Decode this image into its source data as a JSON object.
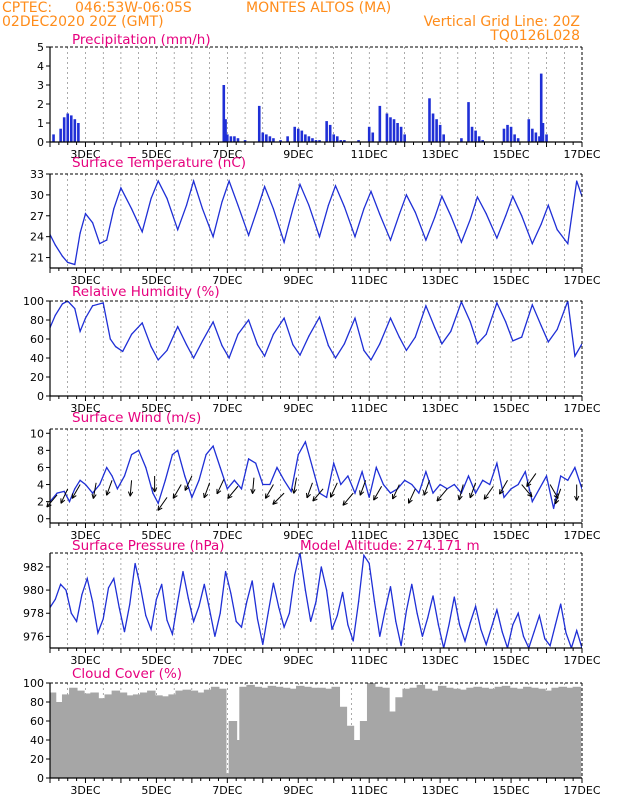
{
  "header": {
    "source": "CPTEC:",
    "coords": "046:53W-06:05S",
    "location": "MONTES ALTOS (MA)",
    "run": "02DEC2020 20Z (GMT)",
    "grid_note": "Vertical Grid Line: 20Z",
    "model": "TQ0126L028"
  },
  "colors": {
    "header": "#ff8c1a",
    "title": "#e6007e",
    "series": "#1f2fd6",
    "bars": "#1f2fd6",
    "cloud": "#a6a6a6",
    "grid": "#555555"
  },
  "chart_data": [
    {
      "type": "bar",
      "title": "Precipitation (mm/h)",
      "ylim": [
        0,
        5
      ],
      "yticks": [
        0,
        1,
        2,
        3,
        4,
        5
      ],
      "x_ticks": [
        "3DEC",
        "5DEC",
        "7DEC",
        "9DEC",
        "11DEC",
        "13DEC",
        "15DEC",
        "17DEC"
      ],
      "x_range_days": [
        2.0,
        17.0
      ],
      "x": [
        2.1,
        2.3,
        2.4,
        2.5,
        2.6,
        2.7,
        2.8,
        6.9,
        6.95,
        7.0,
        7.1,
        7.2,
        7.3,
        7.5,
        7.9,
        8.0,
        8.1,
        8.2,
        8.3,
        8.5,
        8.7,
        8.9,
        9.0,
        9.1,
        9.2,
        9.3,
        9.4,
        9.5,
        9.6,
        9.8,
        9.9,
        10.0,
        10.1,
        10.2,
        10.3,
        10.7,
        11.0,
        11.1,
        11.3,
        11.5,
        11.6,
        11.7,
        11.8,
        11.9,
        12.0,
        12.7,
        12.8,
        12.9,
        13.0,
        13.1,
        13.6,
        13.8,
        13.9,
        14.0,
        14.1,
        14.2,
        14.8,
        14.9,
        15.0,
        15.1,
        15.2,
        15.5,
        15.6,
        15.7,
        15.8,
        15.85,
        15.9,
        16.0
      ],
      "values": [
        0.4,
        0.7,
        1.3,
        1.5,
        1.4,
        1.2,
        1.0,
        3.0,
        1.2,
        0.4,
        0.3,
        0.3,
        0.2,
        0.1,
        1.9,
        0.5,
        0.4,
        0.3,
        0.2,
        0.1,
        0.3,
        0.8,
        0.7,
        0.6,
        0.4,
        0.3,
        0.2,
        0.1,
        0.1,
        1.1,
        0.9,
        0.4,
        0.3,
        0.1,
        0.1,
        0.1,
        0.8,
        0.5,
        1.9,
        1.5,
        1.3,
        1.2,
        1.0,
        0.8,
        0.4,
        2.3,
        1.5,
        1.2,
        0.9,
        0.4,
        0.2,
        2.1,
        0.8,
        0.6,
        0.3,
        0.1,
        0.7,
        0.9,
        0.8,
        0.4,
        0.2,
        1.2,
        0.7,
        0.5,
        0.3,
        3.6,
        1.0,
        0.4
      ]
    },
    {
      "type": "line",
      "title": "Surface Temperature (nC)",
      "ylim": [
        19.5,
        33
      ],
      "yticks": [
        21,
        24,
        27,
        30,
        33
      ],
      "x_ticks": [
        "3DEC",
        "5DEC",
        "7DEC",
        "9DEC",
        "11DEC",
        "13DEC",
        "15DEC",
        "17DEC"
      ],
      "x_range_days": [
        2.0,
        17.0
      ],
      "x": [
        2.0,
        2.15,
        2.35,
        2.5,
        2.7,
        2.85,
        3.0,
        3.2,
        3.4,
        3.6,
        3.8,
        4.0,
        4.3,
        4.6,
        4.85,
        5.05,
        5.3,
        5.6,
        5.85,
        6.05,
        6.3,
        6.6,
        6.85,
        7.05,
        7.3,
        7.6,
        7.85,
        8.05,
        8.3,
        8.6,
        8.85,
        9.05,
        9.3,
        9.6,
        9.85,
        10.05,
        10.3,
        10.6,
        10.85,
        11.05,
        11.3,
        11.6,
        11.85,
        12.05,
        12.3,
        12.6,
        12.85,
        13.05,
        13.3,
        13.6,
        13.85,
        14.05,
        14.3,
        14.6,
        14.85,
        15.05,
        15.3,
        15.6,
        15.85,
        16.05,
        16.3,
        16.6,
        16.85,
        17.0
      ],
      "values": [
        24.3,
        22.8,
        21.2,
        20.3,
        20.0,
        24.5,
        27.3,
        26.0,
        23.0,
        23.5,
        28.0,
        31.0,
        28.0,
        24.7,
        29.5,
        32.0,
        29.5,
        25.0,
        28.5,
        32.0,
        28.0,
        24.0,
        29.0,
        32.0,
        28.5,
        24.2,
        28.0,
        31.2,
        28.0,
        23.2,
        28.0,
        31.5,
        28.5,
        24.0,
        28.5,
        31.3,
        28.3,
        24.0,
        28.0,
        30.5,
        27.2,
        23.5,
        27.2,
        30.0,
        27.5,
        23.5,
        26.8,
        29.8,
        27.0,
        23.2,
        26.5,
        29.7,
        27.3,
        23.8,
        27.0,
        29.8,
        27.0,
        23.0,
        25.8,
        28.5,
        25.0,
        23.0,
        32.0,
        29.8
      ]
    },
    {
      "type": "line",
      "title": "Relative Humidity (%)",
      "ylim": [
        0,
        100
      ],
      "yticks": [
        0,
        20,
        40,
        60,
        80,
        100
      ],
      "x_ticks": [
        "3DEC",
        "5DEC",
        "7DEC",
        "9DEC",
        "11DEC",
        "13DEC",
        "15DEC",
        "17DEC"
      ],
      "x_range_days": [
        2.0,
        17.0
      ],
      "x": [
        2.0,
        2.15,
        2.35,
        2.5,
        2.7,
        2.85,
        3.0,
        3.2,
        3.5,
        3.7,
        3.85,
        4.05,
        4.3,
        4.6,
        4.85,
        5.05,
        5.3,
        5.6,
        5.85,
        6.05,
        6.3,
        6.6,
        6.85,
        7.05,
        7.3,
        7.6,
        7.85,
        8.05,
        8.3,
        8.6,
        8.85,
        9.05,
        9.3,
        9.6,
        9.85,
        10.05,
        10.3,
        10.6,
        10.85,
        11.05,
        11.3,
        11.6,
        11.85,
        12.05,
        12.3,
        12.6,
        12.85,
        13.05,
        13.3,
        13.6,
        13.85,
        14.05,
        14.3,
        14.6,
        14.85,
        15.05,
        15.3,
        15.6,
        15.85,
        16.05,
        16.3,
        16.6,
        16.8,
        17.0
      ],
      "values": [
        72,
        85,
        97,
        100,
        92,
        68,
        82,
        95,
        98,
        60,
        52,
        47,
        65,
        77,
        52,
        38,
        48,
        73,
        54,
        40,
        58,
        78,
        53,
        40,
        65,
        80,
        54,
        42,
        65,
        82,
        54,
        43,
        63,
        83,
        53,
        40,
        55,
        82,
        48,
        38,
        55,
        82,
        62,
        48,
        62,
        95,
        72,
        55,
        68,
        99,
        78,
        55,
        65,
        98,
        78,
        58,
        62,
        96,
        74,
        57,
        70,
        100,
        42,
        55
      ]
    },
    {
      "type": "line",
      "title": "Surface Wind (m/s)",
      "ylim": [
        -0.5,
        10.5
      ],
      "yticks": [
        0,
        2,
        4,
        6,
        8,
        10
      ],
      "x_ticks": [
        "3DEC",
        "5DEC",
        "7DEC",
        "9DEC",
        "11DEC",
        "13DEC",
        "15DEC",
        "17DEC"
      ],
      "x_range_days": [
        2.0,
        17.0
      ],
      "x": [
        2.0,
        2.2,
        2.4,
        2.55,
        2.7,
        2.85,
        3.0,
        3.2,
        3.4,
        3.6,
        3.75,
        3.9,
        4.1,
        4.3,
        4.5,
        4.7,
        4.9,
        5.05,
        5.25,
        5.45,
        5.6,
        5.8,
        6.0,
        6.2,
        6.4,
        6.6,
        6.8,
        7.0,
        7.2,
        7.4,
        7.6,
        7.8,
        8.0,
        8.2,
        8.4,
        8.6,
        8.8,
        9.0,
        9.2,
        9.4,
        9.6,
        9.8,
        10.0,
        10.2,
        10.4,
        10.6,
        10.8,
        11.0,
        11.2,
        11.4,
        11.6,
        11.8,
        12.0,
        12.2,
        12.4,
        12.6,
        12.8,
        13.0,
        13.2,
        13.4,
        13.6,
        13.8,
        14.0,
        14.2,
        14.4,
        14.6,
        14.8,
        15.0,
        15.2,
        15.4,
        15.6,
        15.8,
        16.0,
        16.2,
        16.4,
        16.6,
        16.8,
        17.0
      ],
      "values": [
        2.0,
        3.0,
        3.2,
        2.0,
        3.5,
        4.5,
        4.0,
        3.0,
        4.0,
        6.0,
        5.0,
        3.5,
        5.0,
        7.5,
        8.0,
        6.0,
        3.0,
        1.8,
        4.5,
        7.5,
        8.0,
        5.0,
        2.5,
        4.5,
        7.5,
        8.5,
        6.0,
        3.5,
        4.5,
        3.5,
        7.0,
        6.5,
        4.0,
        4.0,
        6.0,
        4.5,
        3.2,
        7.5,
        9.0,
        6.0,
        3.0,
        2.5,
        6.5,
        4.0,
        5.0,
        3.0,
        5.5,
        2.5,
        6.0,
        4.0,
        3.0,
        3.5,
        4.5,
        4.0,
        3.0,
        5.5,
        3.0,
        4.0,
        3.5,
        4.0,
        3.0,
        5.0,
        3.0,
        4.5,
        4.0,
        6.5,
        2.5,
        3.5,
        4.0,
        5.5,
        2.0,
        3.5,
        5.0,
        1.2,
        5.0,
        4.5,
        6.0,
        3.5
      ],
      "arrows_x": [
        2.2,
        2.5,
        2.85,
        3.3,
        3.75,
        4.3,
        4.95,
        5.3,
        5.7,
        6.0,
        6.5,
        6.9,
        7.3,
        7.75,
        8.3,
        8.6,
        8.95,
        9.4,
        9.7,
        10.1,
        10.55,
        10.9,
        11.35,
        11.85,
        12.3,
        12.7,
        13.2,
        13.65,
        14.0,
        14.5,
        14.9,
        15.3,
        15.7,
        16.1,
        16.4,
        16.85
      ],
      "arrows_y": [
        2.8,
        3.5,
        4.0,
        4.2,
        4.5,
        4.5,
        5.0,
        2.5,
        4.0,
        5.0,
        4.2,
        4.6,
        3.8,
        4.8,
        4.0,
        3.0,
        4.8,
        4.2,
        3.5,
        4.2,
        3.0,
        4.5,
        3.8,
        4.0,
        3.5,
        4.5,
        3.5,
        4.0,
        4.2,
        3.8,
        4.5,
        4.0,
        5.3,
        4.0,
        3.5,
        4.0
      ],
      "arrows_dir": [
        230,
        245,
        240,
        260,
        250,
        265,
        270,
        235,
        240,
        245,
        250,
        245,
        230,
        265,
        240,
        225,
        260,
        250,
        230,
        245,
        230,
        250,
        240,
        245,
        245,
        250,
        230,
        255,
        250,
        235,
        240,
        310,
        235,
        300,
        250,
        270
      ]
    },
    {
      "type": "line",
      "title": "Surface Pressure (hPa)",
      "subtitle": "Model Altitude: 274.171 m",
      "ylim": [
        975,
        983.2
      ],
      "yticks": [
        976,
        978,
        980,
        982
      ],
      "x_ticks": [
        "3DEC",
        "5DEC",
        "7DEC",
        "9DEC",
        "11DEC",
        "13DEC",
        "15DEC",
        "17DEC"
      ],
      "x_range_days": [
        2.0,
        17.0
      ],
      "x": [
        2.0,
        2.15,
        2.3,
        2.45,
        2.6,
        2.75,
        2.9,
        3.05,
        3.2,
        3.35,
        3.5,
        3.65,
        3.8,
        3.95,
        4.1,
        4.25,
        4.4,
        4.55,
        4.7,
        4.85,
        5.0,
        5.15,
        5.3,
        5.45,
        5.6,
        5.75,
        5.9,
        6.05,
        6.2,
        6.35,
        6.5,
        6.65,
        6.8,
        6.95,
        7.1,
        7.25,
        7.4,
        7.55,
        7.7,
        7.85,
        8.0,
        8.15,
        8.3,
        8.45,
        8.6,
        8.75,
        8.9,
        9.05,
        9.2,
        9.35,
        9.5,
        9.65,
        9.8,
        9.95,
        10.1,
        10.25,
        10.4,
        10.55,
        10.7,
        10.85,
        11.0,
        11.15,
        11.3,
        11.45,
        11.6,
        11.75,
        11.9,
        12.05,
        12.2,
        12.35,
        12.5,
        12.65,
        12.8,
        12.95,
        13.1,
        13.25,
        13.4,
        13.55,
        13.7,
        13.85,
        14.0,
        14.15,
        14.3,
        14.45,
        14.6,
        14.75,
        14.9,
        15.05,
        15.2,
        15.35,
        15.5,
        15.65,
        15.8,
        15.95,
        16.1,
        16.25,
        16.4,
        16.55,
        16.7,
        16.85,
        17.0
      ],
      "values": [
        978.5,
        979.2,
        980.5,
        980.0,
        978.0,
        977.3,
        979.6,
        981.0,
        979.0,
        976.3,
        977.5,
        980.2,
        981.0,
        978.5,
        976.4,
        978.8,
        982.3,
        980.3,
        977.8,
        976.6,
        979.2,
        980.5,
        977.4,
        976.2,
        979.0,
        981.6,
        979.3,
        977.3,
        978.6,
        980.5,
        978.3,
        976.0,
        978.0,
        981.6,
        979.7,
        977.3,
        976.8,
        979.0,
        980.8,
        977.5,
        975.3,
        978.0,
        980.6,
        978.5,
        976.8,
        978.0,
        981.3,
        983.2,
        980.0,
        977.3,
        979.0,
        982.0,
        980.0,
        976.6,
        977.8,
        979.8,
        977.0,
        975.6,
        979.0,
        983.0,
        982.3,
        979.0,
        976.0,
        978.3,
        980.3,
        977.3,
        975.2,
        978.2,
        980.5,
        978.0,
        976.0,
        977.6,
        979.5,
        977.0,
        975.0,
        977.0,
        979.4,
        977.0,
        975.6,
        977.2,
        978.6,
        976.6,
        975.3,
        976.8,
        978.3,
        976.4,
        975.0,
        977.0,
        978.0,
        976.0,
        975.0,
        976.4,
        977.8,
        975.8,
        975.2,
        977.0,
        978.8,
        976.3,
        975.0,
        976.5,
        975.0
      ]
    },
    {
      "type": "bar",
      "title": "Cloud Cover (%)",
      "ylim": [
        0,
        100
      ],
      "yticks": [
        0,
        20,
        40,
        60,
        80,
        100
      ],
      "x_ticks": [
        "3DEC",
        "5DEC",
        "7DEC",
        "9DEC",
        "11DEC",
        "13DEC",
        "15DEC",
        "17DEC"
      ],
      "x_range_days": [
        2.0,
        17.0
      ],
      "x": [
        2.05,
        2.25,
        2.45,
        2.65,
        2.85,
        3.05,
        3.25,
        3.45,
        3.65,
        3.85,
        4.05,
        4.25,
        4.45,
        4.65,
        4.85,
        5.05,
        5.25,
        5.45,
        5.65,
        5.85,
        6.05,
        6.25,
        6.45,
        6.65,
        6.85,
        6.95,
        7.05,
        7.15,
        7.25,
        7.45,
        7.65,
        7.85,
        8.05,
        8.25,
        8.45,
        8.65,
        8.85,
        9.05,
        9.25,
        9.45,
        9.65,
        9.85,
        10.05,
        10.25,
        10.45,
        10.55,
        10.65,
        10.85,
        11.05,
        11.25,
        11.45,
        11.65,
        11.85,
        12.05,
        12.25,
        12.45,
        12.65,
        12.85,
        13.05,
        13.25,
        13.45,
        13.65,
        13.85,
        14.05,
        14.25,
        14.45,
        14.65,
        14.85,
        15.05,
        15.25,
        15.45,
        15.65,
        15.85,
        16.05,
        16.25,
        16.45,
        16.65,
        16.85
      ],
      "values": [
        90,
        80,
        88,
        95,
        92,
        89,
        90,
        84,
        88,
        92,
        90,
        87,
        88,
        90,
        92,
        87,
        86,
        88,
        92,
        93,
        92,
        90,
        93,
        96,
        94,
        5,
        2,
        60,
        40,
        96,
        98,
        96,
        95,
        97,
        96,
        95,
        94,
        97,
        96,
        95,
        95,
        94,
        96,
        75,
        55,
        10,
        40,
        60,
        100,
        96,
        95,
        70,
        85,
        94,
        95,
        98,
        94,
        92,
        97,
        95,
        94,
        93,
        95,
        96,
        95,
        94,
        96,
        97,
        95,
        94,
        96,
        95,
        94,
        92,
        95,
        96,
        95,
        96
      ]
    }
  ]
}
